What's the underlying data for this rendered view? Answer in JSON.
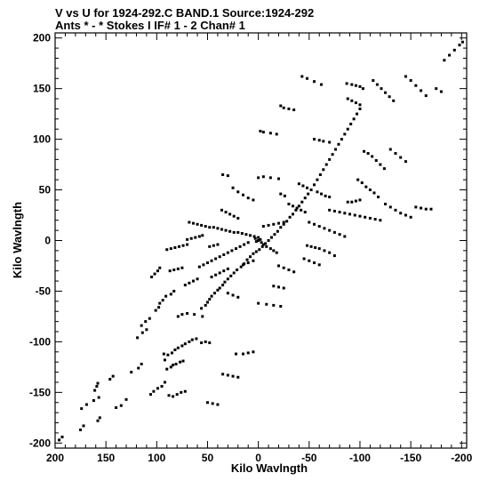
{
  "header": {
    "line1": "V vs U for 1924-292.C BAND.1   Source:1924-292",
    "line2": "Ants * - *     Stokes I  IF# 1 - 2  Chan# 1"
  },
  "chart_data": {
    "type": "scatter",
    "title": "V vs U for 1924-292.C BAND.1   Source:1924-292",
    "subtitle": "Ants * - *     Stokes I  IF# 1 - 2  Chan# 1",
    "xlabel": "Kilo Wavlngth",
    "ylabel": "Kilo Wavlngth",
    "xlim": [
      200,
      -205
    ],
    "ylim": [
      -205,
      205
    ],
    "x_reversed": true,
    "x_ticks": [
      200,
      150,
      100,
      50,
      0,
      -50,
      -100,
      -150,
      -200
    ],
    "y_ticks": [
      200,
      150,
      100,
      50,
      0,
      -50,
      -100,
      -150,
      -200
    ],
    "x_tick_labels": [
      "200",
      "150",
      "100",
      "50",
      "0",
      "-50",
      "-100",
      "-150",
      "-200"
    ],
    "y_tick_labels": [
      "200",
      "150",
      "100",
      "50",
      "0",
      "-50",
      "-100",
      "-150",
      "-200"
    ],
    "grid": false,
    "marker_color": "#000000",
    "points": [
      [
        196,
        -197
      ],
      [
        193,
        -194
      ],
      [
        175,
        -187
      ],
      [
        172,
        -183
      ],
      [
        158,
        -178
      ],
      [
        156,
        -175
      ],
      [
        174,
        -166
      ],
      [
        169,
        -162
      ],
      [
        162,
        -158
      ],
      [
        157,
        -155
      ],
      [
        161,
        -148
      ],
      [
        159,
        -144
      ],
      [
        158,
        -141
      ],
      [
        146,
        -137
      ],
      [
        143,
        -134
      ],
      [
        125,
        -130
      ],
      [
        118,
        -126
      ],
      [
        115,
        -122
      ],
      [
        140,
        -165
      ],
      [
        135,
        -163
      ],
      [
        130,
        -157
      ],
      [
        106,
        -152
      ],
      [
        103,
        -149
      ],
      [
        99,
        -146
      ],
      [
        95,
        -144
      ],
      [
        92,
        -140
      ],
      [
        88,
        -153
      ],
      [
        84,
        -154
      ],
      [
        80,
        -152
      ],
      [
        76,
        -150
      ],
      [
        72,
        -149
      ],
      [
        90,
        -127
      ],
      [
        86,
        -125
      ],
      [
        84,
        -123
      ],
      [
        81,
        -122
      ],
      [
        77,
        -120
      ],
      [
        74,
        -119
      ],
      [
        85,
        -111
      ],
      [
        82,
        -108
      ],
      [
        79,
        -106
      ],
      [
        75,
        -104
      ],
      [
        72,
        -102
      ],
      [
        68,
        -100
      ],
      [
        65,
        -98
      ],
      [
        61,
        -97
      ],
      [
        56,
        -101
      ],
      [
        52,
        -100
      ],
      [
        48,
        -101
      ],
      [
        93,
        -112
      ],
      [
        89,
        -113
      ],
      [
        92,
        -118
      ],
      [
        119,
        -96
      ],
      [
        114,
        -91
      ],
      [
        110,
        -88
      ],
      [
        115,
        -84
      ],
      [
        111,
        -80
      ],
      [
        107,
        -77
      ],
      [
        101,
        -69
      ],
      [
        98,
        -66
      ],
      [
        97,
        -62
      ],
      [
        94,
        -59
      ],
      [
        91,
        -55
      ],
      [
        86,
        -53
      ],
      [
        83,
        -50
      ],
      [
        105,
        -36
      ],
      [
        102,
        -33
      ],
      [
        99,
        -30
      ],
      [
        97,
        -27
      ],
      [
        79,
        -75
      ],
      [
        75,
        -73
      ],
      [
        70,
        -72
      ],
      [
        63,
        -73
      ],
      [
        55,
        -75
      ],
      [
        56,
        -67
      ],
      [
        52,
        -64
      ],
      [
        50,
        -61
      ],
      [
        48,
        -58
      ],
      [
        46,
        -55
      ],
      [
        43,
        -52
      ],
      [
        40,
        -49
      ],
      [
        38,
        -47
      ],
      [
        35,
        -44
      ],
      [
        33,
        -41
      ],
      [
        30,
        -38
      ],
      [
        27,
        -35
      ],
      [
        24,
        -32
      ],
      [
        21,
        -29
      ],
      [
        17,
        -26
      ],
      [
        14,
        -23
      ],
      [
        11,
        -19
      ],
      [
        8,
        -16
      ],
      [
        5,
        -13
      ],
      [
        2,
        -11
      ],
      [
        -1,
        -9
      ],
      [
        -4,
        -6
      ],
      [
        -7,
        -3
      ],
      [
        -10,
        0
      ],
      [
        -13,
        3
      ],
      [
        -16,
        6
      ],
      [
        -19,
        9
      ],
      [
        -22,
        13
      ],
      [
        -25,
        16
      ],
      [
        -28,
        19
      ],
      [
        -31,
        23
      ],
      [
        -34,
        26
      ],
      [
        -37,
        30
      ],
      [
        -40,
        34
      ],
      [
        -43,
        38
      ],
      [
        -46,
        42
      ],
      [
        -49,
        46
      ],
      [
        -52,
        50
      ],
      [
        -55,
        55
      ],
      [
        -58,
        60
      ],
      [
        -61,
        65
      ],
      [
        -64,
        70
      ],
      [
        -67,
        75
      ],
      [
        -70,
        80
      ],
      [
        -73,
        85
      ],
      [
        -76,
        90
      ],
      [
        -79,
        95
      ],
      [
        -82,
        100
      ],
      [
        -85,
        105
      ],
      [
        -88,
        110
      ],
      [
        -91,
        115
      ],
      [
        -94,
        120
      ],
      [
        -97,
        125
      ],
      [
        -100,
        130
      ],
      [
        -43,
        162
      ],
      [
        -48,
        160
      ],
      [
        -55,
        157
      ],
      [
        -62,
        154
      ],
      [
        -87,
        155
      ],
      [
        -92,
        154
      ],
      [
        -96,
        153
      ],
      [
        -100,
        152
      ],
      [
        -103,
        150
      ],
      [
        -88,
        140
      ],
      [
        -92,
        138
      ],
      [
        -96,
        136
      ],
      [
        -100,
        134
      ],
      [
        -113,
        158
      ],
      [
        -117,
        154
      ],
      [
        -121,
        150
      ],
      [
        -125,
        146
      ],
      [
        -129,
        142
      ],
      [
        -133,
        138
      ],
      [
        -145,
        162
      ],
      [
        -150,
        158
      ],
      [
        -155,
        153
      ],
      [
        -160,
        148
      ],
      [
        -165,
        143
      ],
      [
        -183,
        178
      ],
      [
        -188,
        183
      ],
      [
        -193,
        188
      ],
      [
        -198,
        193
      ],
      [
        -201,
        196
      ],
      [
        -175,
        150
      ],
      [
        -180,
        147
      ],
      [
        -22,
        133
      ],
      [
        -25,
        131
      ],
      [
        -30,
        130
      ],
      [
        -35,
        129
      ],
      [
        -2,
        108
      ],
      [
        -5,
        107
      ],
      [
        -12,
        106
      ],
      [
        -18,
        105
      ],
      [
        -55,
        100
      ],
      [
        -60,
        99
      ],
      [
        -64,
        98
      ],
      [
        -70,
        97
      ],
      [
        -104,
        88
      ],
      [
        -108,
        86
      ],
      [
        -112,
        83
      ],
      [
        -116,
        79
      ],
      [
        -120,
        75
      ],
      [
        -124,
        71
      ],
      [
        -130,
        90
      ],
      [
        -135,
        86
      ],
      [
        -140,
        82
      ],
      [
        -145,
        78
      ],
      [
        -98,
        60
      ],
      [
        -102,
        57
      ],
      [
        -106,
        53
      ],
      [
        -110,
        50
      ],
      [
        -114,
        47
      ],
      [
        -118,
        43
      ],
      [
        -125,
        36
      ],
      [
        -130,
        33
      ],
      [
        -135,
        30
      ],
      [
        -140,
        27
      ],
      [
        -145,
        25
      ],
      [
        -150,
        23
      ],
      [
        -155,
        33
      ],
      [
        -160,
        32
      ],
      [
        -165,
        31
      ],
      [
        -170,
        31
      ],
      [
        -70,
        30
      ],
      [
        -75,
        29
      ],
      [
        -80,
        28
      ],
      [
        -85,
        27
      ],
      [
        -90,
        26
      ],
      [
        -95,
        25
      ],
      [
        -100,
        24
      ],
      [
        -105,
        23
      ],
      [
        -110,
        22
      ],
      [
        -115,
        21
      ],
      [
        -120,
        20
      ],
      [
        -58,
        48
      ],
      [
        -62,
        46
      ],
      [
        -66,
        44
      ],
      [
        -70,
        43
      ],
      [
        -88,
        38
      ],
      [
        -92,
        38
      ],
      [
        -96,
        39
      ],
      [
        -100,
        40
      ],
      [
        -40,
        56
      ],
      [
        -44,
        54
      ],
      [
        -48,
        52
      ],
      [
        -30,
        36
      ],
      [
        -34,
        34
      ],
      [
        -38,
        32
      ],
      [
        -42,
        30
      ],
      [
        -46,
        28
      ],
      [
        -50,
        18
      ],
      [
        -55,
        16
      ],
      [
        -60,
        14
      ],
      [
        -65,
        12
      ],
      [
        -70,
        10
      ],
      [
        -75,
        8
      ],
      [
        -80,
        6
      ],
      [
        -85,
        4
      ],
      [
        -48,
        -5
      ],
      [
        -52,
        -6
      ],
      [
        -56,
        -7
      ],
      [
        -60,
        -8
      ],
      [
        -65,
        -10
      ],
      [
        -70,
        -12
      ],
      [
        -75,
        -15
      ],
      [
        -45,
        -18
      ],
      [
        -50,
        -20
      ],
      [
        -55,
        -22
      ],
      [
        -60,
        -24
      ],
      [
        -20,
        -25
      ],
      [
        -25,
        -27
      ],
      [
        -30,
        -29
      ],
      [
        -35,
        -31
      ],
      [
        -15,
        -45
      ],
      [
        -20,
        -46
      ],
      [
        -25,
        -47
      ],
      [
        0,
        -62
      ],
      [
        -8,
        -63
      ],
      [
        -15,
        -64
      ],
      [
        -22,
        -65
      ],
      [
        30,
        -52
      ],
      [
        25,
        -54
      ],
      [
        20,
        -56
      ],
      [
        22,
        -112
      ],
      [
        15,
        -112
      ],
      [
        10,
        -111
      ],
      [
        5,
        -110
      ],
      [
        35,
        -132
      ],
      [
        30,
        -133
      ],
      [
        25,
        -134
      ],
      [
        20,
        -135
      ],
      [
        50,
        -160
      ],
      [
        45,
        -161
      ],
      [
        40,
        -162
      ],
      [
        5,
        -20
      ],
      [
        10,
        -22
      ],
      [
        15,
        -24
      ],
      [
        -5,
        -4
      ],
      [
        -8,
        -6
      ],
      [
        -12,
        -8
      ],
      [
        -15,
        -10
      ],
      [
        -18,
        -12
      ],
      [
        0,
        3
      ],
      [
        4,
        4
      ],
      [
        8,
        5
      ],
      [
        12,
        6
      ],
      [
        16,
        7
      ],
      [
        20,
        8
      ],
      [
        24,
        8
      ],
      [
        28,
        9
      ],
      [
        32,
        10
      ],
      [
        36,
        11
      ],
      [
        40,
        12
      ],
      [
        44,
        13
      ],
      [
        48,
        13
      ],
      [
        52,
        14
      ],
      [
        56,
        15
      ],
      [
        60,
        16
      ],
      [
        64,
        17
      ],
      [
        68,
        18
      ],
      [
        -5,
        14
      ],
      [
        -10,
        15
      ],
      [
        -15,
        16
      ],
      [
        -20,
        17
      ],
      [
        -25,
        18
      ],
      [
        10,
        -2
      ],
      [
        14,
        -4
      ],
      [
        18,
        -6
      ],
      [
        22,
        -8
      ],
      [
        26,
        -10
      ],
      [
        30,
        -12
      ],
      [
        34,
        -14
      ],
      [
        38,
        -16
      ],
      [
        42,
        -18
      ],
      [
        46,
        -20
      ],
      [
        50,
        -22
      ],
      [
        54,
        -24
      ],
      [
        58,
        -26
      ],
      [
        70,
        -4
      ],
      [
        74,
        -5
      ],
      [
        78,
        -6
      ],
      [
        82,
        -7
      ],
      [
        86,
        -8
      ],
      [
        90,
        -9
      ],
      [
        55,
        5
      ],
      [
        58,
        4
      ],
      [
        62,
        3
      ],
      [
        66,
        2
      ],
      [
        70,
        1
      ],
      [
        30,
        -28
      ],
      [
        34,
        -30
      ],
      [
        38,
        -32
      ],
      [
        42,
        -34
      ],
      [
        46,
        -36
      ],
      [
        60,
        -38
      ],
      [
        64,
        -40
      ],
      [
        68,
        -42
      ],
      [
        72,
        -44
      ],
      [
        75,
        -27
      ],
      [
        79,
        -28
      ],
      [
        83,
        -29
      ],
      [
        87,
        -30
      ],
      [
        40,
        -4
      ],
      [
        44,
        -5
      ],
      [
        48,
        -6
      ],
      [
        20,
        22
      ],
      [
        24,
        24
      ],
      [
        28,
        26
      ],
      [
        32,
        28
      ],
      [
        36,
        30
      ],
      [
        5,
        40
      ],
      [
        10,
        42
      ],
      [
        15,
        45
      ],
      [
        20,
        48
      ],
      [
        25,
        52
      ],
      [
        0,
        62
      ],
      [
        -5,
        63
      ],
      [
        -12,
        62
      ],
      [
        -20,
        61
      ],
      [
        30,
        64
      ],
      [
        35,
        65
      ],
      [
        -22,
        46
      ],
      [
        -26,
        44
      ],
      [
        0,
        0
      ],
      [
        -2,
        1
      ],
      [
        2,
        -1
      ],
      [
        -3,
        -2
      ],
      [
        3,
        2
      ]
    ]
  }
}
